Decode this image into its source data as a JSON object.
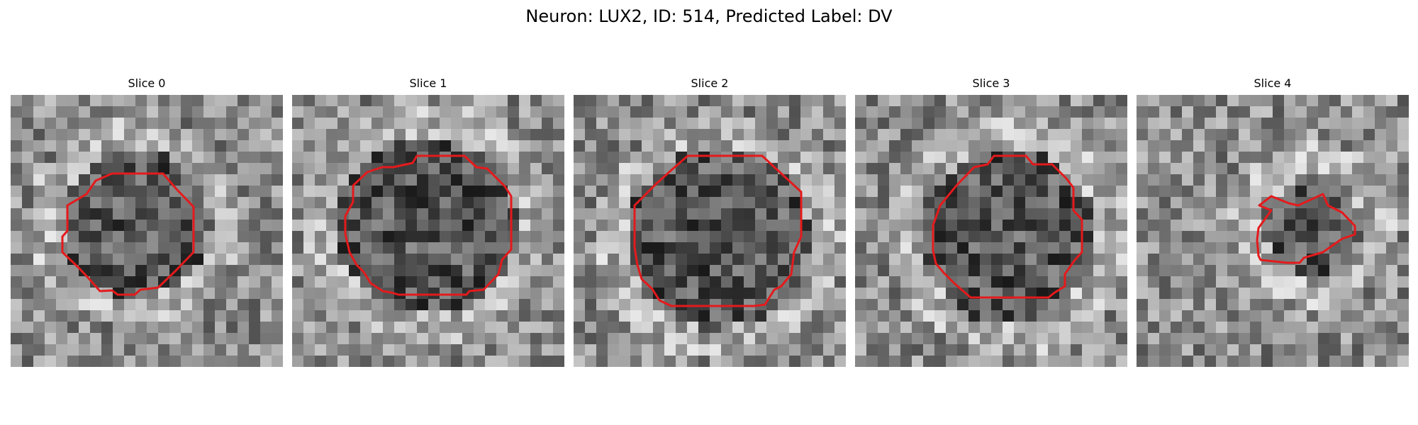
{
  "figure": {
    "title": "Neuron: LUX2, ID: 514, Predicted Label: DV"
  },
  "colors": {
    "contour": "#e41a1c",
    "background": "#ffffff"
  },
  "slices": [
    {
      "label": "Slice 0"
    },
    {
      "label": "Slice 1"
    },
    {
      "label": "Slice 2"
    },
    {
      "label": "Slice 3"
    },
    {
      "label": "Slice 4"
    }
  ]
}
